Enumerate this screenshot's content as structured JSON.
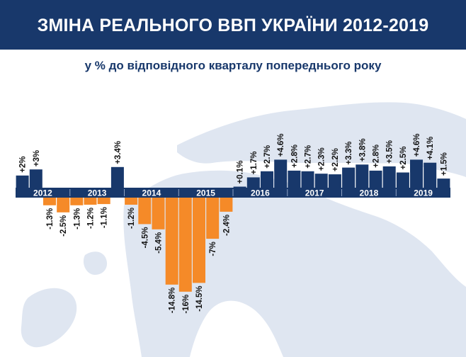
{
  "header": {
    "title": "ЗМІНА РЕАЛЬНОГО ВВП УКРАЇНИ 2012-2019",
    "subtitle": "у % до відповідного кварталу попереднього року"
  },
  "colors": {
    "header_bg": "#18386b",
    "positive": "#18386b",
    "negative": "#f58a28",
    "axis_band": "#18386b",
    "axis_text": "#ffffff",
    "label_text": "#111111",
    "map": "#dfe6f1"
  },
  "chart_data": {
    "type": "bar",
    "ylabel": "",
    "xlabel": "",
    "years": [
      "2012",
      "2013",
      "2014",
      "2015",
      "2016",
      "2017",
      "2018",
      "2019"
    ],
    "categories": [
      "2012 Q1",
      "2012 Q2",
      "2012 Q3",
      "2012 Q4",
      "2013 Q1",
      "2013 Q2",
      "2013 Q3",
      "2013 Q4",
      "2014 Q1",
      "2014 Q2",
      "2014 Q3",
      "2014 Q4",
      "2015 Q1",
      "2015 Q2",
      "2015 Q3",
      "2015 Q4",
      "2016 Q1",
      "2016 Q2",
      "2016 Q3",
      "2016 Q4",
      "2017 Q1",
      "2017 Q2",
      "2017 Q3",
      "2017 Q4",
      "2018 Q1",
      "2018 Q2",
      "2018 Q3",
      "2018 Q4",
      "2019 Q1",
      "2019 Q2",
      "2019 Q3",
      "2019 Q4"
    ],
    "values": [
      2,
      3,
      -1.3,
      -2.5,
      -1.3,
      -1.2,
      -1.1,
      3.4,
      -1.2,
      -4.5,
      -5.4,
      -14.8,
      -16,
      -14.5,
      -7,
      -2.4,
      0.1,
      1.7,
      2.7,
      4.6,
      2.8,
      2.7,
      2.3,
      2.2,
      3.3,
      3.8,
      2.8,
      3.5,
      2.5,
      4.6,
      4.1,
      1.5
    ],
    "labels": [
      "+2%",
      "+3%",
      "-1.3%",
      "-2.5%",
      "-1.3%",
      "-1.2%",
      "-1.1%",
      "+3.4%",
      "-1.2%",
      "-4.5%",
      "-5.4%",
      "-14.8%",
      "-16%",
      "-14.5%",
      "-7%",
      "-2.4%",
      "+0.1%",
      "+1.7%",
      "+2.7%",
      "+4.6%",
      "+2.8%",
      "+2.7%",
      "+2.3%",
      "+2.2%",
      "+3.3%",
      "+3.8%",
      "+2.8%",
      "+3.5%",
      "+2.5%",
      "+4.6%",
      "+4.1%",
      "+1.5%"
    ]
  }
}
